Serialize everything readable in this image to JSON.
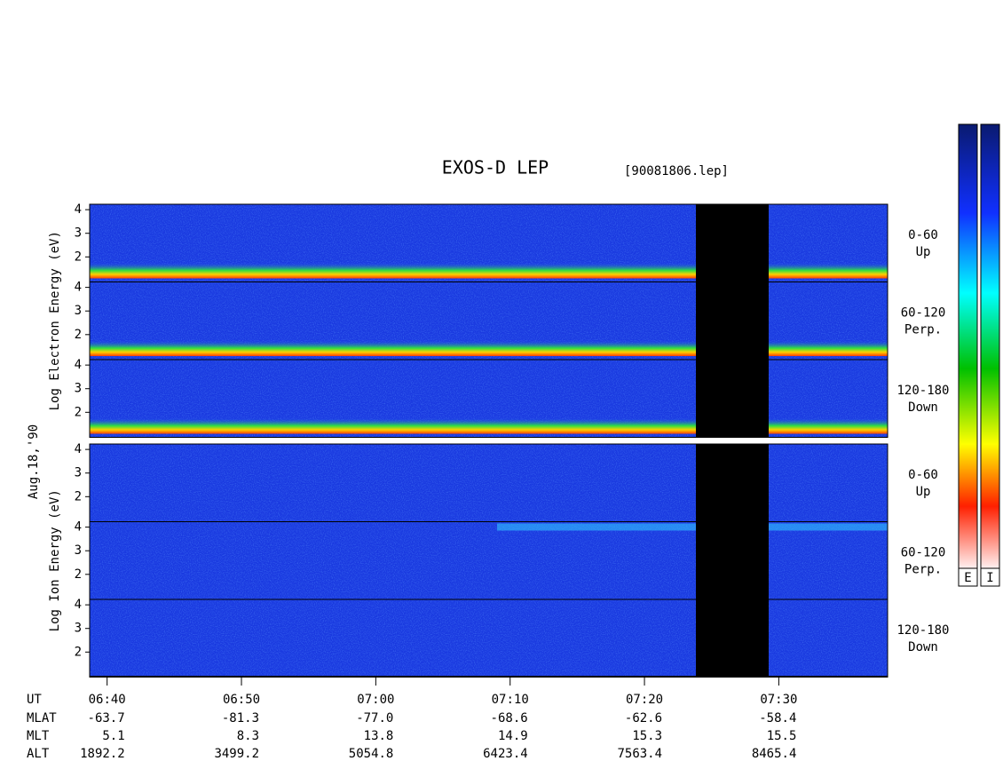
{
  "chart_data": {
    "type": "spectrogram",
    "title": "EXOS-D LEP",
    "subtitle": "[90081806.lep]",
    "date_label": "Aug.18,'90",
    "xlim": [
      398.7,
      458.1
    ],
    "xticks": [
      {
        "value": 400,
        "label": "06:40"
      },
      {
        "value": 410,
        "label": "06:50"
      },
      {
        "value": 420,
        "label": "07:00"
      },
      {
        "value": 430,
        "label": "07:10"
      },
      {
        "value": 440,
        "label": "07:20"
      },
      {
        "value": 450,
        "label": "07:30"
      }
    ],
    "ylim": [
      0.94,
      4.23
    ],
    "yticks": [
      2,
      3,
      4
    ],
    "groups": [
      {
        "ylabel": "Log Electron Energy (eV)",
        "panels": [
          {
            "pitch": "0-60",
            "direction": "Up"
          },
          {
            "pitch": "60-120",
            "direction": "Perp."
          },
          {
            "pitch": "120-180",
            "direction": "Down"
          }
        ]
      },
      {
        "ylabel": "Log Ion Energy (eV)",
        "panels": [
          {
            "pitch": "0-60",
            "direction": "Up"
          },
          {
            "pitch": "60-120",
            "direction": "Perp."
          },
          {
            "pitch": "120-180",
            "direction": "Down"
          }
        ]
      }
    ],
    "ephemeris": [
      {
        "name": "MLAT",
        "values": [
          -63.7,
          -81.3,
          -77.0,
          -68.6,
          -62.6,
          -58.4
        ],
        "value_labels": [
          "-63.7",
          "-81.3",
          "-77.0",
          "-68.6",
          "-62.6",
          "-58.4"
        ]
      },
      {
        "name": "MLT",
        "values": [
          5.1,
          8.3,
          13.8,
          14.9,
          15.3,
          15.5
        ]
      },
      {
        "name": "ALT",
        "values": [
          1892.2,
          3499.2,
          5054.8,
          6423.4,
          7563.4,
          8465.4
        ]
      }
    ],
    "x_row_name": "UT",
    "colorbars": [
      "E",
      "I"
    ]
  }
}
